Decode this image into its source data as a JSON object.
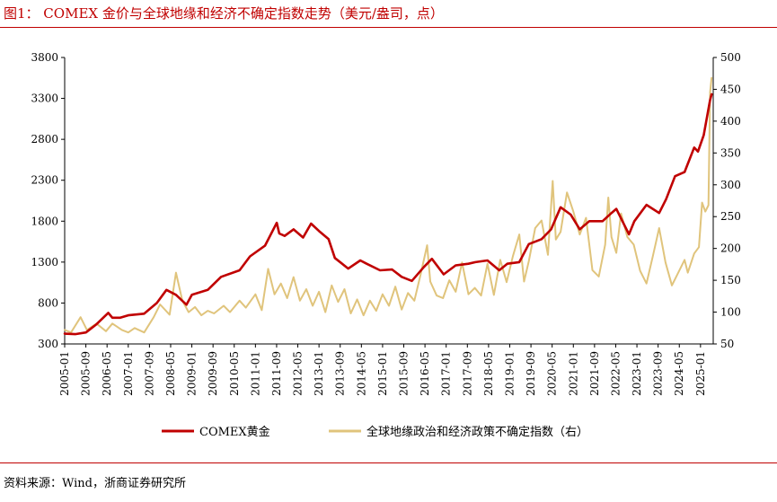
{
  "title": "图1：  COMEX 金价与全球地缘和经济不确定指数走势（美元/盎司，点）",
  "source": "资料来源：Wind，浙商证券研究所",
  "colors": {
    "gold": "#c00000",
    "index": "#e0c47c",
    "accent": "#c00000"
  },
  "chart_data": {
    "type": "line",
    "title": "COMEX 金价与全球地缘和经济不确定指数走势（美元/盎司，点）",
    "x_tick_labels": [
      "2005-01",
      "2005-09",
      "2006-05",
      "2007-01",
      "2007-09",
      "2008-05",
      "2009-01",
      "2009-09",
      "2010-05",
      "2011-01",
      "2011-09",
      "2012-05",
      "2013-01",
      "2013-09",
      "2014-05",
      "2015-01",
      "2015-09",
      "2016-05",
      "2017-01",
      "2017-09",
      "2018-05",
      "2019-01",
      "2019-09",
      "2020-05",
      "2021-01",
      "2021-09",
      "2022-05",
      "2023-01",
      "2023-09",
      "2024-05",
      "2025-01"
    ],
    "x_range": [
      2005.0,
      2025.4
    ],
    "left_axis": {
      "ylim": [
        300,
        3800
      ],
      "ticks": [
        300,
        800,
        1300,
        1800,
        2300,
        2800,
        3300,
        3800
      ]
    },
    "right_axis": {
      "ylim": [
        50,
        500
      ],
      "ticks": [
        50,
        100,
        150,
        200,
        250,
        300,
        350,
        400,
        450,
        500
      ]
    },
    "legend": [
      "COMEX黄金",
      "全球地缘政治和经济政策不确定指数（右）"
    ],
    "series": [
      {
        "name": "COMEX黄金",
        "axis": "left",
        "x": [
          2005.0,
          2005.33,
          2005.67,
          2006.0,
          2006.37,
          2006.5,
          2006.75,
          2007.0,
          2007.5,
          2007.9,
          2008.2,
          2008.5,
          2008.83,
          2009.0,
          2009.5,
          2009.92,
          2010.5,
          2010.83,
          2011.3,
          2011.67,
          2011.75,
          2011.92,
          2012.2,
          2012.5,
          2012.75,
          2013.0,
          2013.3,
          2013.5,
          2013.92,
          2014.3,
          2014.5,
          2014.92,
          2015.3,
          2015.6,
          2015.92,
          2016.3,
          2016.55,
          2016.92,
          2017.3,
          2017.7,
          2017.92,
          2018.3,
          2018.67,
          2018.92,
          2019.3,
          2019.6,
          2020.0,
          2020.3,
          2020.6,
          2020.92,
          2021.2,
          2021.5,
          2021.92,
          2022.2,
          2022.35,
          2022.75,
          2022.92,
          2023.3,
          2023.7,
          2023.92,
          2024.2,
          2024.5,
          2024.8,
          2024.92,
          2025.1,
          2025.3,
          2025.35
        ],
        "values": [
          425,
          420,
          440,
          540,
          680,
          620,
          620,
          650,
          670,
          800,
          960,
          900,
          780,
          900,
          960,
          1120,
          1200,
          1370,
          1500,
          1780,
          1650,
          1620,
          1700,
          1600,
          1770,
          1680,
          1580,
          1350,
          1220,
          1320,
          1280,
          1200,
          1210,
          1120,
          1070,
          1240,
          1340,
          1150,
          1260,
          1280,
          1300,
          1320,
          1200,
          1280,
          1300,
          1520,
          1580,
          1700,
          1970,
          1880,
          1700,
          1800,
          1800,
          1900,
          1950,
          1640,
          1800,
          2000,
          1900,
          2070,
          2350,
          2400,
          2700,
          2650,
          2850,
          3280,
          3350
        ]
      },
      {
        "name": "全球地缘政治和经济政策不确定指数（右）",
        "axis": "right",
        "x": [
          2005.0,
          2005.2,
          2005.5,
          2005.7,
          2006.0,
          2006.3,
          2006.5,
          2006.8,
          2007.0,
          2007.2,
          2007.5,
          2007.8,
          2008.0,
          2008.3,
          2008.5,
          2008.7,
          2008.9,
          2009.1,
          2009.3,
          2009.5,
          2009.7,
          2010.0,
          2010.2,
          2010.5,
          2010.7,
          2011.0,
          2011.2,
          2011.4,
          2011.6,
          2011.8,
          2012.0,
          2012.2,
          2012.4,
          2012.6,
          2012.8,
          2013.0,
          2013.2,
          2013.4,
          2013.6,
          2013.8,
          2014.0,
          2014.2,
          2014.4,
          2014.6,
          2014.8,
          2015.0,
          2015.2,
          2015.4,
          2015.6,
          2015.8,
          2016.0,
          2016.2,
          2016.4,
          2016.5,
          2016.7,
          2016.9,
          2017.1,
          2017.3,
          2017.5,
          2017.7,
          2017.9,
          2018.1,
          2018.3,
          2018.5,
          2018.7,
          2018.9,
          2019.1,
          2019.3,
          2019.45,
          2019.6,
          2019.8,
          2020.0,
          2020.2,
          2020.35,
          2020.45,
          2020.6,
          2020.8,
          2021.0,
          2021.2,
          2021.4,
          2021.6,
          2021.8,
          2022.0,
          2022.1,
          2022.2,
          2022.35,
          2022.5,
          2022.7,
          2022.9,
          2023.1,
          2023.3,
          2023.5,
          2023.7,
          2023.9,
          2024.1,
          2024.3,
          2024.5,
          2024.6,
          2024.8,
          2024.95,
          2025.05,
          2025.15,
          2025.25,
          2025.3,
          2025.35
        ],
        "values": [
          72,
          68,
          92,
          72,
          82,
          70,
          82,
          72,
          68,
          75,
          68,
          92,
          112,
          96,
          162,
          118,
          100,
          108,
          95,
          102,
          98,
          110,
          100,
          118,
          107,
          128,
          103,
          168,
          128,
          145,
          122,
          155,
          118,
          136,
          110,
          132,
          100,
          142,
          116,
          136,
          98,
          120,
          95,
          118,
          102,
          128,
          110,
          140,
          104,
          130,
          118,
          160,
          205,
          148,
          126,
          122,
          150,
          132,
          178,
          128,
          138,
          126,
          176,
          127,
          182,
          147,
          188,
          222,
          148,
          180,
          232,
          244,
          190,
          306,
          214,
          226,
          288,
          258,
          222,
          248,
          166,
          156,
          206,
          280,
          218,
          193,
          255,
          218,
          206,
          165,
          145,
          188,
          232,
          178,
          142,
          162,
          182,
          162,
          192,
          202,
          272,
          258,
          268,
          445,
          468
        ]
      }
    ]
  }
}
